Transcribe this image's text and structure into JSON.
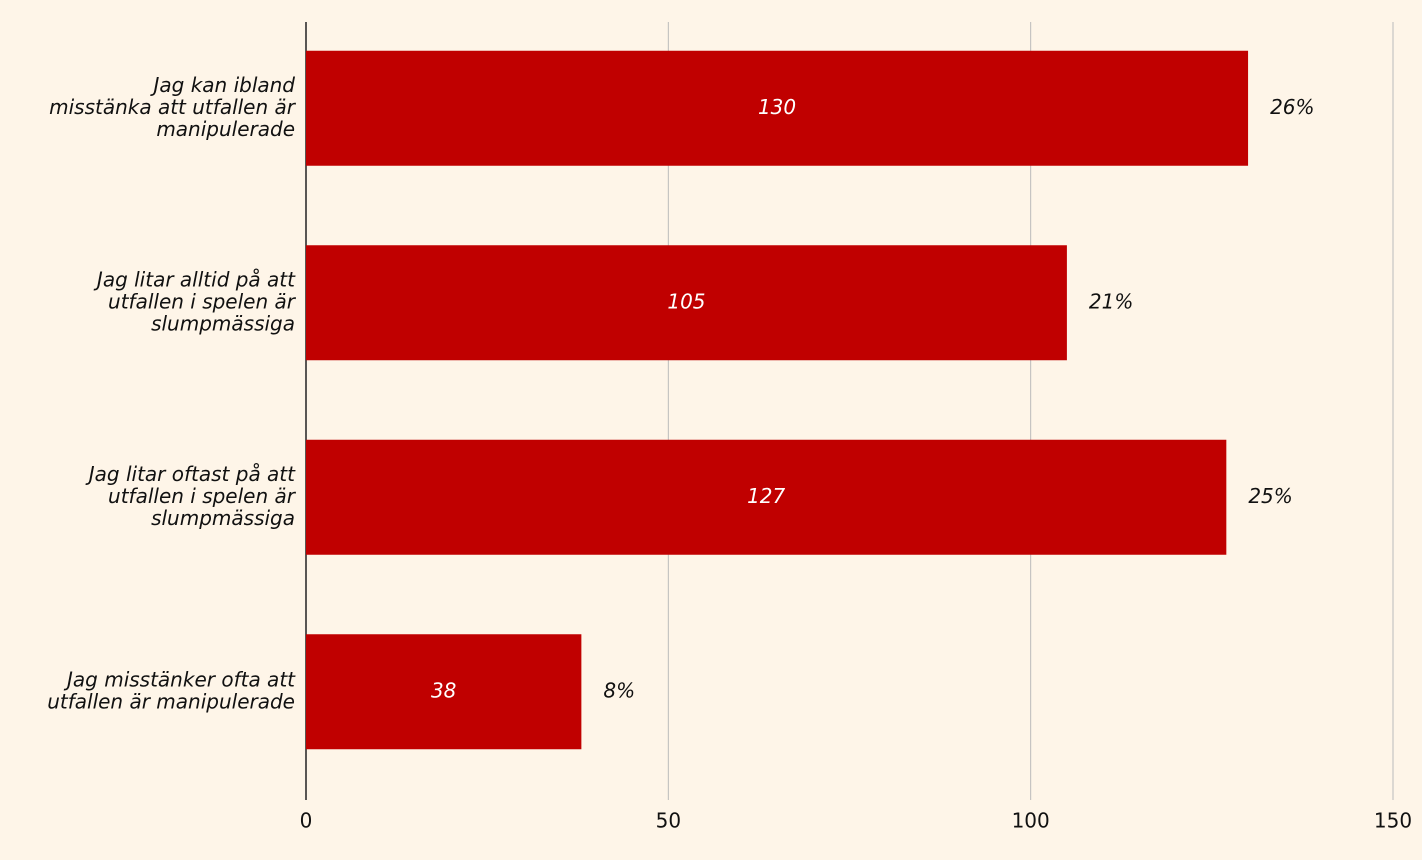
{
  "chart_data": {
    "type": "hbar",
    "categories": [
      [
        "Jag kan ibland",
        "misstänka att utfallen är",
        "manipulerade"
      ],
      [
        "Jag litar alltid på att",
        "utfallen i spelen är",
        "slumpmässiga"
      ],
      [
        "Jag litar oftast på att",
        "utfallen i spelen är",
        "slumpmässiga"
      ],
      [
        "Jag misstänker ofta att",
        "utfallen är manipulerade"
      ]
    ],
    "values": [
      130,
      105,
      127,
      38
    ],
    "share_labels": [
      "26%",
      "21%",
      "25%",
      "8%"
    ],
    "color": "#c00000",
    "xlim": [
      0,
      150
    ],
    "xticks": [
      0,
      50,
      100,
      150
    ],
    "grid": true
  }
}
